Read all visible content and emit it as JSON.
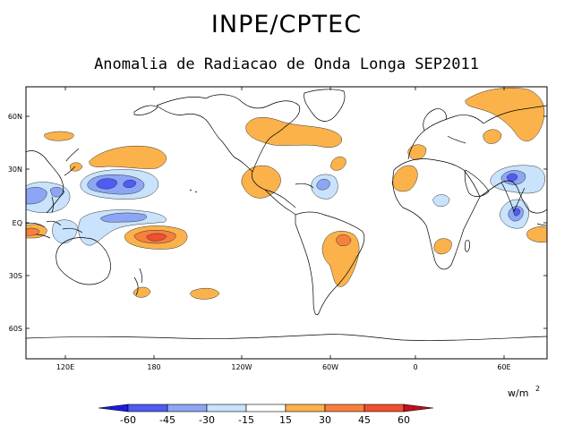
{
  "header": {
    "title": "INPE/CPTEC",
    "subtitle": "Anomalia de Radiacao de Onda Longa SEP2011"
  },
  "axes": {
    "lat_ticks": [
      "60N",
      "30N",
      "EQ",
      "30S",
      "60S"
    ],
    "lon_ticks": [
      "120E",
      "180",
      "120W",
      "60W",
      "0",
      "60E"
    ]
  },
  "colorbar": {
    "unit": "w/m",
    "unit_exp": "2",
    "labels": [
      "-60",
      "-45",
      "-30",
      "-15",
      "15",
      "30",
      "45",
      "60"
    ],
    "colors": [
      "#1a1ae6",
      "#4d5cf2",
      "#8da5f5",
      "#c8e3fb",
      "#ffffff",
      "#fbb24a",
      "#f7803d",
      "#f05030",
      "#c0101e"
    ]
  },
  "colors": {
    "pos_weak": "#fbb24a",
    "pos_mid": "#f7803d",
    "pos_strong": "#f05030",
    "neg_weak": "#c8e3fb",
    "neg_mid": "#8da5f5",
    "neg_strong": "#4d5cf2"
  }
}
